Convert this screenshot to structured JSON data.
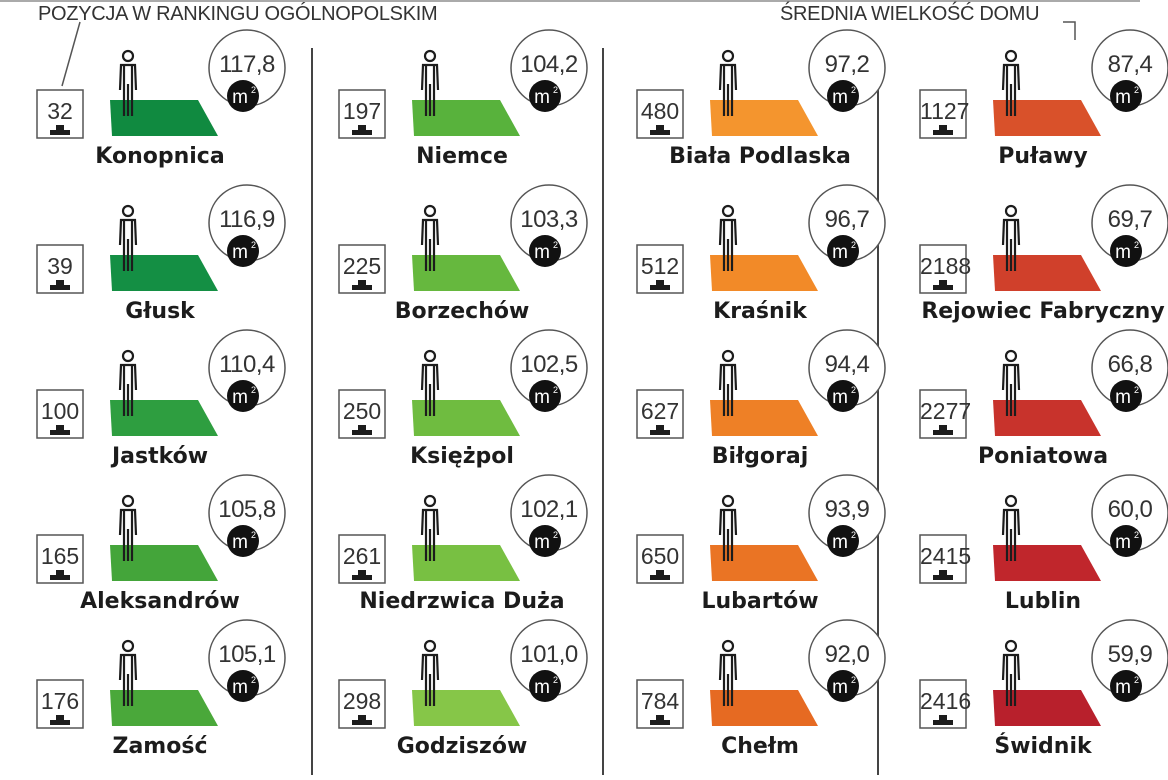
{
  "legend": {
    "rank_label": "POZYCJA W RANKINGU OGÓLNOPOLSKIM",
    "size_label": "ŚREDNIA WIELKOŚĆ DOMU"
  },
  "unit": "m²",
  "icon": "person-icon",
  "colors": {
    "ink": "#1c1c1c",
    "divider": "#444444"
  },
  "chart_data": {
    "type": "table",
    "columns": [
      "town",
      "rank",
      "avg_house_size_m2",
      "tile_color"
    ],
    "rows": [
      {
        "town": "Konopnica",
        "rank": "32",
        "area": "117,8",
        "color": "#108a40"
      },
      {
        "town": "Głusk",
        "rank": "39",
        "area": "116,9",
        "color": "#148f44"
      },
      {
        "town": "Jastków",
        "rank": "100",
        "area": "110,4",
        "color": "#2e9e40"
      },
      {
        "town": "Aleksandrów",
        "rank": "165",
        "area": "105,8",
        "color": "#44a53a"
      },
      {
        "town": "Zamość",
        "rank": "176",
        "area": "105,1",
        "color": "#4aa83a"
      },
      {
        "town": "Niemce",
        "rank": "197",
        "area": "104,2",
        "color": "#58b23c"
      },
      {
        "town": "Borzechów",
        "rank": "225",
        "area": "103,3",
        "color": "#66b83e"
      },
      {
        "town": "Księżpol",
        "rank": "250",
        "area": "102,5",
        "color": "#6fbc40"
      },
      {
        "town": "Niedrzwica Duża",
        "rank": "261",
        "area": "102,1",
        "color": "#78c042"
      },
      {
        "town": "Godziszów",
        "rank": "298",
        "area": "101,0",
        "color": "#86c648"
      },
      {
        "town": "Biała Podlaska",
        "rank": "480",
        "area": "97,2",
        "color": "#f4952e"
      },
      {
        "town": "Kraśnik",
        "rank": "512",
        "area": "96,7",
        "color": "#f28a28"
      },
      {
        "town": "Biłgoraj",
        "rank": "627",
        "area": "94,4",
        "color": "#ee8026"
      },
      {
        "town": "Lubartów",
        "rank": "650",
        "area": "93,9",
        "color": "#ea7424"
      },
      {
        "town": "Chełm",
        "rank": "784",
        "area": "92,0",
        "color": "#e66a22"
      },
      {
        "town": "Puławy",
        "rank": "1127",
        "area": "87,4",
        "color": "#d9512a"
      },
      {
        "town": "Rejowiec Fabryczny",
        "rank": "2188",
        "area": "69,7",
        "color": "#d0402b"
      },
      {
        "town": "Poniatowa",
        "rank": "2277",
        "area": "66,8",
        "color": "#c8332c"
      },
      {
        "town": "Lublin",
        "rank": "2415",
        "area": "60,0",
        "color": "#c0262c"
      },
      {
        "town": "Świdnik",
        "rank": "2416",
        "area": "59,9",
        "color": "#b8202c"
      }
    ]
  }
}
